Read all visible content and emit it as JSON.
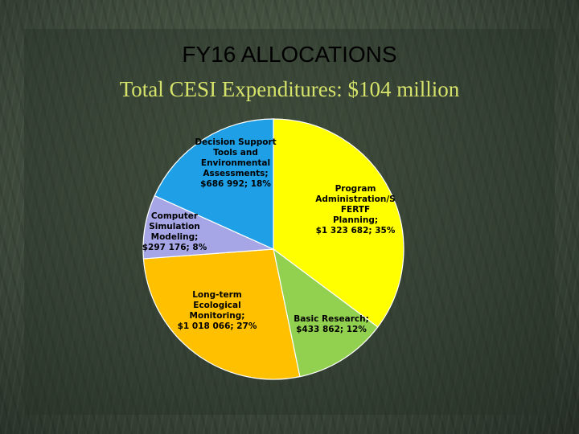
{
  "slide": {
    "title": "FY16 ALLOCATIONS",
    "subtitle": "Total CESI Expenditures: $104 million"
  },
  "chart_data": {
    "type": "pie",
    "title": "",
    "slices": [
      {
        "label_lines": [
          "Program",
          "Administration/S",
          "FERTF",
          "Planning;",
          "$1 323 682; 35%"
        ],
        "value": 1323682,
        "percent": 35,
        "color": "#ffff00"
      },
      {
        "label_lines": [
          "Basic Research;",
          "$433 862; 12%"
        ],
        "value": 433862,
        "percent": 12,
        "color": "#92d050"
      },
      {
        "label_lines": [
          "Long-term",
          "Ecological",
          "Monitoring;",
          "$1 018 066; 27%"
        ],
        "value": 1018066,
        "percent": 27,
        "color": "#ffc000"
      },
      {
        "label_lines": [
          "Computer",
          "Simulation",
          "Modeling;",
          "$297 176; 8%"
        ],
        "value": 297176,
        "percent": 8,
        "color": "#a6a6e6"
      },
      {
        "label_lines": [
          "Decision Support",
          "Tools and",
          "Environmental",
          "Assessments;",
          "$686 992; 18%"
        ],
        "value": 686992,
        "percent": 18,
        "color": "#1f9fe6"
      }
    ]
  }
}
